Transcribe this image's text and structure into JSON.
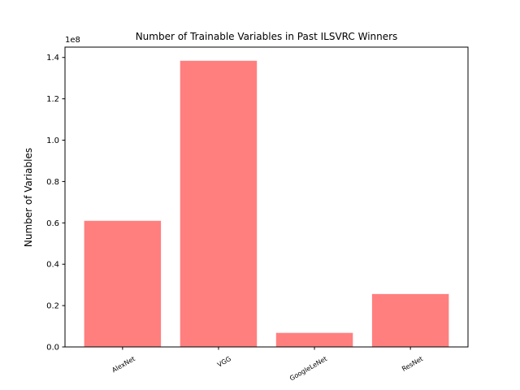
{
  "chart_data": {
    "type": "bar",
    "title": "Number of Trainable Variables in Past ILSVRC Winners",
    "xlabel": "",
    "ylabel": "Number of Variables",
    "categories": [
      "AlexNet",
      "VGG",
      "GoogleLeNet",
      "ResNet"
    ],
    "values": [
      61000000,
      138400000,
      6800000,
      25600000
    ],
    "ylim": [
      0,
      145000000
    ],
    "yticks": [
      0,
      20000000,
      40000000,
      60000000,
      80000000,
      100000000,
      120000000,
      140000000
    ],
    "ytick_labels": [
      "0.0",
      "0.2",
      "0.4",
      "0.6",
      "0.8",
      "1.0",
      "1.2",
      "1.4"
    ],
    "y_offset_label": "1e8",
    "bar_color": "#ff7f7f",
    "grid": false,
    "legend": "none"
  }
}
